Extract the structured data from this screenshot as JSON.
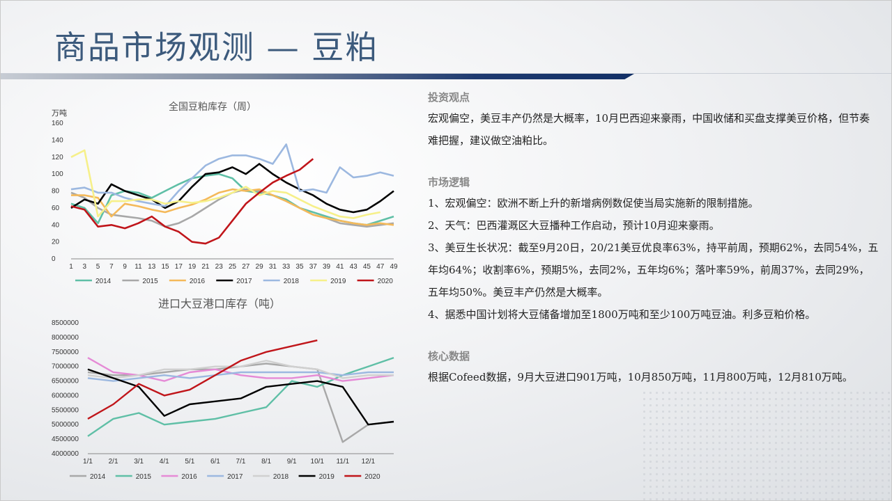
{
  "slide": {
    "title": "商品市场观测 — 豆粕"
  },
  "right": {
    "sections": [
      {
        "heading": "投资观点",
        "paragraphs": [
          "宏观偏空，美豆丰产仍然是大概率，10月巴西迎来豪雨，中国收储和买盘支撑美豆价格，但节奏难把握，建议做空油粕比。"
        ]
      },
      {
        "heading": "市场逻辑",
        "paragraphs": [
          "1、宏观偏空：欧洲不断上升的新增病例数促使当局实施新的限制措施。",
          "2、天气：巴西灌溉区大豆播种工作启动，预计10月迎来豪雨。",
          "3、美豆生长状况：截至9月20日，20/21美豆优良率63%，持平前周，预期62%，去同54%，五年均64%；收割率6%，预期5%，去同2%，五年均6%；落叶率59%，前周37%，去同29%，五年均50%。美豆丰产仍然是大概率。",
          "4、据悉中国计划将大豆储备增加至1800万吨和至少100万吨豆油。利多豆粕价格。"
        ]
      },
      {
        "heading": "核心数据",
        "paragraphs": [
          "根据Cofeed数据，9月大豆进口901万吨，10月850万吨，11月800万吨，12月810万吨。"
        ]
      }
    ]
  },
  "chart_data": [
    {
      "type": "line",
      "title": "全国豆粕库存（周）",
      "ylabel": "万吨",
      "ylim": [
        0,
        160
      ],
      "yticks": [
        0,
        20,
        40,
        60,
        80,
        100,
        120,
        140,
        160
      ],
      "xticks": [
        "1",
        "3",
        "5",
        "7",
        "9",
        "11",
        "13",
        "15",
        "17",
        "19",
        "21",
        "23",
        "25",
        "27",
        "29",
        "31",
        "33",
        "35",
        "37",
        "39",
        "41",
        "43",
        "45",
        "47",
        "49"
      ],
      "legend_position": "bottom",
      "series": [
        {
          "name": "2014",
          "color": "#5fbfa6",
          "x": [
            1,
            3,
            5,
            7,
            9,
            11,
            13,
            15,
            17,
            19,
            21,
            23,
            25,
            27,
            29,
            31,
            33,
            35,
            37,
            39,
            41,
            43,
            45,
            47,
            49
          ],
          "values": [
            65,
            60,
            42,
            75,
            80,
            78,
            72,
            80,
            88,
            95,
            98,
            100,
            95,
            80,
            78,
            75,
            70,
            60,
            55,
            50,
            45,
            42,
            40,
            45,
            50
          ]
        },
        {
          "name": "2015",
          "color": "#a8a8a8",
          "x": [
            1,
            3,
            5,
            7,
            9,
            11,
            13,
            15,
            17,
            19,
            21,
            23,
            25,
            27,
            29,
            31,
            33,
            35,
            37,
            39,
            41,
            43,
            45,
            47,
            49
          ],
          "values": [
            78,
            72,
            60,
            52,
            50,
            48,
            45,
            38,
            42,
            50,
            60,
            70,
            78,
            82,
            80,
            75,
            68,
            60,
            52,
            48,
            42,
            40,
            38,
            40,
            42
          ]
        },
        {
          "name": "2016",
          "color": "#f4b95a",
          "x": [
            1,
            3,
            5,
            7,
            9,
            11,
            13,
            15,
            17,
            19,
            21,
            23,
            25,
            27,
            29,
            31,
            33,
            35,
            37,
            39,
            41,
            43,
            45,
            47,
            49
          ],
          "values": [
            75,
            75,
            72,
            50,
            65,
            62,
            58,
            55,
            60,
            64,
            70,
            78,
            82,
            80,
            82,
            75,
            68,
            60,
            52,
            48,
            45,
            42,
            40,
            42,
            40
          ]
        },
        {
          "name": "2017",
          "color": "#000000",
          "x": [
            1,
            3,
            5,
            7,
            9,
            11,
            13,
            15,
            17,
            19,
            21,
            23,
            25,
            27,
            29,
            31,
            33,
            35,
            37,
            39,
            41,
            43,
            45,
            47,
            49
          ],
          "values": [
            60,
            70,
            65,
            88,
            80,
            75,
            70,
            60,
            68,
            85,
            100,
            102,
            108,
            100,
            112,
            100,
            90,
            82,
            75,
            65,
            58,
            55,
            58,
            68,
            80
          ]
        },
        {
          "name": "2018",
          "color": "#9cb8e0",
          "x": [
            1,
            3,
            5,
            7,
            9,
            11,
            13,
            15,
            17,
            19,
            21,
            23,
            25,
            27,
            29,
            31,
            33,
            35,
            37,
            39,
            41,
            43,
            45,
            47,
            49
          ],
          "values": [
            82,
            84,
            78,
            78,
            72,
            68,
            65,
            62,
            80,
            95,
            110,
            118,
            122,
            122,
            118,
            112,
            135,
            80,
            82,
            78,
            108,
            96,
            98,
            102,
            98
          ]
        },
        {
          "name": "2019",
          "color": "#f6f08a",
          "x": [
            1,
            3,
            5,
            7,
            9,
            11,
            13,
            15,
            17,
            19,
            21,
            23,
            25,
            27,
            29,
            31,
            33,
            35,
            37,
            39,
            41,
            43,
            45,
            47,
            49
          ],
          "values": [
            120,
            128,
            50,
            68,
            68,
            70,
            70,
            65,
            68,
            66,
            68,
            72,
            78,
            85,
            75,
            80,
            78,
            70,
            62,
            56,
            50,
            48,
            52,
            55,
            null
          ]
        },
        {
          "name": "2020",
          "color": "#c0151a",
          "x": [
            1,
            3,
            5,
            7,
            9,
            11,
            13,
            15,
            17,
            19,
            21,
            23,
            25,
            27,
            29,
            31,
            33,
            35,
            37
          ],
          "values": [
            62,
            58,
            38,
            40,
            36,
            42,
            50,
            38,
            32,
            20,
            18,
            25,
            45,
            65,
            78,
            90,
            98,
            105,
            118
          ]
        }
      ]
    },
    {
      "type": "line",
      "title": "进口大豆港口库存（吨）",
      "ylim": [
        4000000,
        8500000
      ],
      "yticks": [
        4000000,
        4500000,
        5000000,
        5500000,
        6000000,
        6500000,
        7000000,
        7500000,
        8000000,
        8500000
      ],
      "xticks": [
        "1/1",
        "2/1",
        "3/1",
        "4/1",
        "5/1",
        "6/1",
        "7/1",
        "8/1",
        "9/1",
        "10/1",
        "11/1",
        "12/1"
      ],
      "legend_position": "bottom",
      "series": [
        {
          "name": "2014",
          "color": "#a8a8a8",
          "x": [
            0,
            1,
            2,
            3,
            4,
            5,
            6,
            7,
            8,
            9,
            10,
            11,
            12
          ],
          "values": [
            6800000,
            6700000,
            6700000,
            6800000,
            6900000,
            6900000,
            7000000,
            7100000,
            7000000,
            6900000,
            4400000,
            5000000,
            5100000
          ]
        },
        {
          "name": "2015",
          "color": "#5fbfa6",
          "x": [
            0,
            1,
            2,
            3,
            4,
            5,
            6,
            7,
            8,
            9,
            10,
            11,
            12
          ],
          "values": [
            4600000,
            5200000,
            5400000,
            5000000,
            5100000,
            5200000,
            5400000,
            5600000,
            6500000,
            6300000,
            6700000,
            7000000,
            7300000
          ]
        },
        {
          "name": "2016",
          "color": "#e58ad6",
          "x": [
            0,
            1,
            2,
            3,
            4,
            5,
            6,
            7,
            8,
            9,
            10,
            11,
            12
          ],
          "values": [
            7300000,
            6800000,
            6700000,
            6500000,
            6800000,
            6900000,
            6700000,
            6600000,
            6600000,
            6700000,
            6500000,
            6600000,
            6700000
          ]
        },
        {
          "name": "2017",
          "color": "#9cb8e0",
          "x": [
            0,
            1,
            2,
            3,
            4,
            5,
            6,
            7,
            8,
            9,
            10,
            11,
            12
          ],
          "values": [
            6600000,
            6500000,
            6600000,
            6700000,
            6600000,
            6700000,
            6800000,
            6800000,
            6800000,
            6800000,
            6700000,
            6800000,
            6800000
          ]
        },
        {
          "name": "2018",
          "color": "#d0d0d0",
          "x": [
            0,
            1,
            2,
            3,
            4,
            5,
            6,
            7,
            8,
            9,
            10,
            11,
            12
          ],
          "values": [
            6700000,
            6600000,
            6700000,
            6900000,
            6900000,
            7000000,
            7000000,
            7200000,
            7000000,
            6900000,
            6600000,
            6700000,
            6700000
          ]
        },
        {
          "name": "2019",
          "color": "#000000",
          "x": [
            0,
            1,
            2,
            3,
            4,
            5,
            6,
            7,
            8,
            9,
            10,
            11,
            12
          ],
          "values": [
            6900000,
            6600000,
            6300000,
            5300000,
            5700000,
            5800000,
            5900000,
            6300000,
            6400000,
            6500000,
            6300000,
            5000000,
            5100000
          ]
        },
        {
          "name": "2020",
          "color": "#c0151a",
          "x": [
            0,
            1,
            2,
            3,
            4,
            5,
            6,
            7,
            8,
            9
          ],
          "values": [
            5200000,
            5700000,
            6400000,
            6000000,
            6200000,
            6700000,
            7200000,
            7500000,
            7700000,
            7900000
          ]
        }
      ]
    }
  ]
}
